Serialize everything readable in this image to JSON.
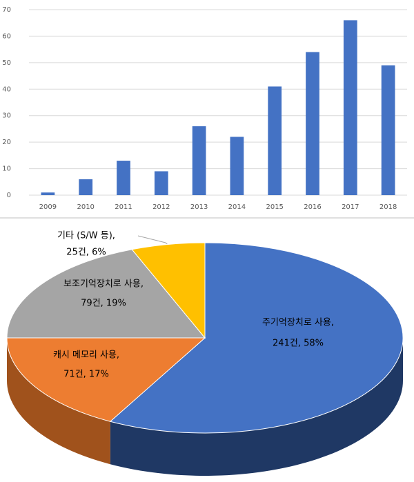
{
  "chart_data": [
    {
      "type": "bar",
      "categories": [
        "2009",
        "2010",
        "2011",
        "2012",
        "2013",
        "2014",
        "2015",
        "2016",
        "2017",
        "2018"
      ],
      "values": [
        1,
        6,
        13,
        9,
        26,
        22,
        41,
        54,
        66,
        49
      ],
      "color": "#4472c4",
      "ylim": [
        0,
        70
      ],
      "yticks": [
        0,
        10,
        20,
        30,
        40,
        50,
        60,
        70
      ],
      "grid": true
    },
    {
      "type": "pie",
      "categories": [
        "주기억장치로 사용,",
        "캐시 메모리 사용,",
        "보조기억장치로 사용,",
        "기타 (S/W 등),"
      ],
      "values": [
        241,
        71,
        79,
        25
      ],
      "value_labels": [
        "241건, 58%",
        "71건, 17%",
        "79건, 19%",
        "25건, 6%"
      ],
      "colors": [
        "#4472c4",
        "#ed7d31",
        "#a5a5a5",
        "#ffc000"
      ]
    }
  ]
}
